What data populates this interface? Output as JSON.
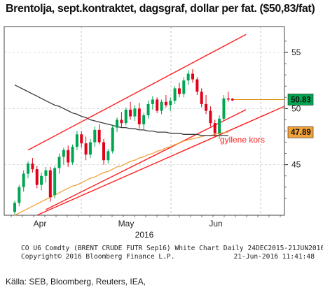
{
  "title": "Brentolja, sept.kontraktet, dagsgraf, dollar per fat. ($50,83/fat)",
  "footer": {
    "line1": "CO U6 Comdty (BRENT CRUDE FUTR  Sep16) White Chart  Daily 24DEC2015-21JUN2016",
    "line2": "Copyright© 2016 Bloomberg Finance L.P.",
    "line2_right": "21-Jun-2016 11:41:48"
  },
  "source": "Källa: SEB, Bloomberg, Reuters, IEA,",
  "colors": {
    "up": "#00a651",
    "down": "#e2001a",
    "ma_short": "#f2a23a",
    "ma_long": "#3a3a3a",
    "channel": "#ff2020",
    "last_price_box": "#00a651",
    "ma_box": "#f2a23a"
  },
  "chart_data": {
    "type": "candlestick",
    "title": "Brentolja, sept.kontraktet, dagsgraf, dollar per fat. ($50,83/fat)",
    "x_labels": [
      "Apr",
      "May",
      "Jun"
    ],
    "year_label": "2016",
    "y_ticks": [
      45,
      50,
      55
    ],
    "ylim": [
      40.5,
      57.3
    ],
    "annotation": "gyllene kors",
    "last_price_label": "50.83",
    "ma_label": "47.89",
    "candles": [
      [
        40.8,
        41.8,
        40.6,
        41.6
      ],
      [
        41.6,
        43.2,
        41.3,
        43.0
      ],
      [
        43.0,
        44.5,
        42.6,
        44.2
      ],
      [
        44.2,
        45.3,
        43.8,
        45.1
      ],
      [
        45.1,
        45.6,
        44.3,
        44.6
      ],
      [
        44.6,
        44.9,
        42.9,
        43.2
      ],
      [
        43.2,
        44.3,
        42.7,
        44.0
      ],
      [
        44.0,
        44.8,
        43.4,
        44.5
      ],
      [
        44.5,
        44.8,
        41.7,
        42.1
      ],
      [
        42.3,
        44.9,
        42.0,
        44.7
      ],
      [
        44.7,
        46.0,
        44.2,
        45.7
      ],
      [
        45.7,
        46.5,
        45.0,
        46.3
      ],
      [
        46.3,
        46.7,
        44.8,
        45.2
      ],
      [
        45.2,
        46.8,
        45.0,
        46.6
      ],
      [
        46.6,
        48.0,
        46.3,
        47.7
      ],
      [
        47.7,
        48.0,
        46.5,
        46.9
      ],
      [
        46.9,
        47.5,
        45.4,
        45.9
      ],
      [
        45.9,
        47.3,
        45.6,
        47.0
      ],
      [
        47.0,
        48.4,
        46.6,
        48.1
      ],
      [
        48.1,
        48.6,
        46.8,
        47.0
      ],
      [
        47.0,
        47.3,
        45.0,
        45.4
      ],
      [
        45.4,
        46.4,
        45.1,
        46.2
      ],
      [
        46.2,
        48.5,
        46.0,
        48.3
      ],
      [
        48.3,
        49.2,
        47.9,
        49.0
      ],
      [
        49.0,
        49.7,
        48.3,
        48.7
      ],
      [
        48.7,
        50.1,
        48.5,
        49.9
      ],
      [
        49.9,
        50.6,
        49.0,
        49.3
      ],
      [
        49.3,
        50.3,
        48.9,
        50.0
      ],
      [
        50.0,
        50.5,
        48.2,
        48.6
      ],
      [
        48.6,
        49.6,
        48.1,
        49.4
      ],
      [
        49.4,
        50.7,
        49.1,
        50.4
      ],
      [
        50.4,
        51.1,
        49.9,
        50.8
      ],
      [
        50.8,
        51.0,
        49.6,
        49.8
      ],
      [
        49.8,
        50.8,
        49.5,
        50.6
      ],
      [
        50.6,
        51.2,
        50.1,
        50.3
      ],
      [
        50.3,
        51.0,
        49.8,
        50.7
      ],
      [
        50.7,
        52.0,
        50.4,
        51.8
      ],
      [
        51.8,
        52.3,
        51.0,
        51.3
      ],
      [
        51.3,
        52.8,
        51.0,
        52.5
      ],
      [
        52.5,
        53.4,
        52.1,
        53.1
      ],
      [
        53.1,
        53.5,
        52.3,
        52.6
      ],
      [
        52.6,
        52.8,
        51.2,
        51.5
      ],
      [
        51.5,
        51.8,
        50.1,
        50.4
      ],
      [
        50.4,
        51.2,
        49.5,
        49.8
      ],
      [
        49.8,
        50.2,
        48.4,
        48.7
      ],
      [
        48.7,
        49.0,
        47.5,
        47.8
      ],
      [
        47.8,
        49.4,
        47.3,
        49.1
      ],
      [
        49.1,
        51.2,
        48.9,
        50.9
      ],
      [
        50.9,
        51.5,
        50.6,
        50.8
      ]
    ],
    "series": [
      {
        "values": [
          40.5,
          40.7,
          40.9,
          41.1,
          41.3,
          41.5,
          41.7,
          41.9,
          42.1,
          42.3,
          42.5,
          42.7,
          42.9,
          43.1,
          43.2,
          43.4,
          43.6,
          43.8,
          43.9,
          44.1,
          44.3,
          44.4,
          44.6,
          44.8,
          44.9,
          45.1,
          45.3,
          45.4,
          45.6,
          45.7,
          45.9,
          46.0,
          46.2,
          46.3,
          46.5,
          46.6,
          46.8,
          46.9,
          47.1,
          47.2,
          47.3,
          47.4,
          47.5,
          47.6,
          47.6,
          47.7,
          47.8,
          47.85,
          47.89
        ]
      },
      {
        "values": [
          52.1,
          51.9,
          51.7,
          51.5,
          51.3,
          51.1,
          50.9,
          50.7,
          50.5,
          50.3,
          50.2,
          50.0,
          49.8,
          49.6,
          49.5,
          49.3,
          49.2,
          49.0,
          48.9,
          48.8,
          48.7,
          48.6,
          48.5,
          48.4,
          48.3,
          48.3,
          48.2,
          48.2,
          48.1,
          48.1,
          48.0,
          48.0,
          47.9,
          47.9,
          47.9,
          47.8,
          47.8,
          47.8,
          47.7,
          47.7,
          47.7,
          47.7,
          47.6,
          47.6,
          47.6,
          47.6,
          47.6,
          47.6,
          47.6
        ]
      }
    ]
  }
}
